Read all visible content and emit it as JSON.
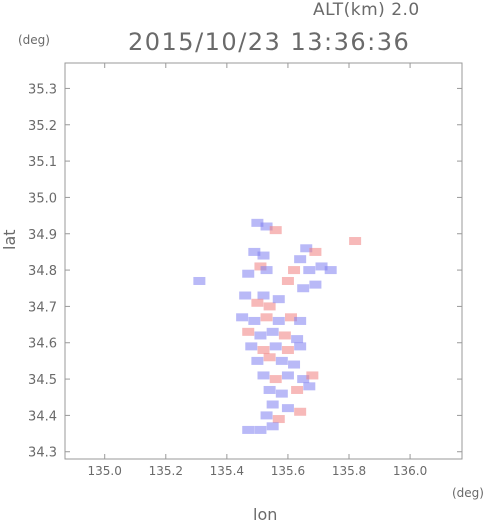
{
  "header": {
    "altitude_label": "ALT(km) 2.0",
    "timestamp": "2015/10/23 13:36:36",
    "y_unit": "(deg)",
    "x_unit": "(deg)"
  },
  "chart_data": {
    "type": "heatmap",
    "title": "2015/10/23 13:36:36",
    "xlabel": "lon",
    "ylabel": "lat",
    "xlim": [
      134.87,
      136.17
    ],
    "ylim": [
      34.28,
      35.37
    ],
    "x_ticks": [
      135.0,
      135.2,
      135.4,
      135.6,
      135.8,
      136.0
    ],
    "x_tick_labels": [
      "135.0",
      "135.2",
      "135.4",
      "135.6",
      "135.8",
      "136.0"
    ],
    "y_ticks": [
      34.3,
      34.4,
      34.5,
      34.6,
      34.7,
      34.8,
      34.9,
      35.0,
      35.1,
      35.2,
      35.3
    ],
    "y_tick_labels": [
      "34.3",
      "34.4",
      "34.5",
      "34.6",
      "34.7",
      "34.8",
      "34.9",
      "35.0",
      "35.1",
      "35.2",
      "35.3"
    ],
    "grid": false,
    "colors": {
      "positive": "#f08080",
      "negative": "#8080f0"
    },
    "cells": [
      {
        "lon": 135.5,
        "lat": 34.93,
        "sign": -1
      },
      {
        "lon": 135.53,
        "lat": 34.92,
        "sign": -1
      },
      {
        "lon": 135.56,
        "lat": 34.91,
        "sign": 1
      },
      {
        "lon": 135.49,
        "lat": 34.85,
        "sign": -1
      },
      {
        "lon": 135.52,
        "lat": 34.84,
        "sign": -1
      },
      {
        "lon": 135.51,
        "lat": 34.81,
        "sign": 1
      },
      {
        "lon": 135.53,
        "lat": 34.8,
        "sign": -1
      },
      {
        "lon": 135.47,
        "lat": 34.79,
        "sign": -1
      },
      {
        "lon": 135.66,
        "lat": 34.86,
        "sign": -1
      },
      {
        "lon": 135.69,
        "lat": 34.85,
        "sign": 1
      },
      {
        "lon": 135.64,
        "lat": 34.83,
        "sign": -1
      },
      {
        "lon": 135.62,
        "lat": 34.8,
        "sign": 1
      },
      {
        "lon": 135.67,
        "lat": 34.8,
        "sign": -1
      },
      {
        "lon": 135.71,
        "lat": 34.81,
        "sign": -1
      },
      {
        "lon": 135.74,
        "lat": 34.8,
        "sign": -1
      },
      {
        "lon": 135.6,
        "lat": 34.77,
        "sign": 1
      },
      {
        "lon": 135.65,
        "lat": 34.75,
        "sign": -1
      },
      {
        "lon": 135.69,
        "lat": 34.76,
        "sign": -1
      },
      {
        "lon": 135.82,
        "lat": 34.88,
        "sign": 1
      },
      {
        "lon": 135.31,
        "lat": 34.77,
        "sign": -1
      },
      {
        "lon": 135.52,
        "lat": 34.73,
        "sign": -1
      },
      {
        "lon": 135.46,
        "lat": 34.73,
        "sign": -1
      },
      {
        "lon": 135.5,
        "lat": 34.71,
        "sign": 1
      },
      {
        "lon": 135.54,
        "lat": 34.7,
        "sign": 1
      },
      {
        "lon": 135.57,
        "lat": 34.72,
        "sign": -1
      },
      {
        "lon": 135.45,
        "lat": 34.67,
        "sign": -1
      },
      {
        "lon": 135.49,
        "lat": 34.66,
        "sign": -1
      },
      {
        "lon": 135.53,
        "lat": 34.67,
        "sign": 1
      },
      {
        "lon": 135.57,
        "lat": 34.66,
        "sign": -1
      },
      {
        "lon": 135.61,
        "lat": 34.67,
        "sign": 1
      },
      {
        "lon": 135.64,
        "lat": 34.66,
        "sign": -1
      },
      {
        "lon": 135.47,
        "lat": 34.63,
        "sign": 1
      },
      {
        "lon": 135.51,
        "lat": 34.62,
        "sign": -1
      },
      {
        "lon": 135.55,
        "lat": 34.63,
        "sign": -1
      },
      {
        "lon": 135.59,
        "lat": 34.62,
        "sign": 1
      },
      {
        "lon": 135.63,
        "lat": 34.61,
        "sign": -1
      },
      {
        "lon": 135.48,
        "lat": 34.59,
        "sign": -1
      },
      {
        "lon": 135.52,
        "lat": 34.58,
        "sign": 1
      },
      {
        "lon": 135.56,
        "lat": 34.59,
        "sign": -1
      },
      {
        "lon": 135.6,
        "lat": 34.58,
        "sign": 1
      },
      {
        "lon": 135.64,
        "lat": 34.59,
        "sign": -1
      },
      {
        "lon": 135.5,
        "lat": 34.55,
        "sign": -1
      },
      {
        "lon": 135.54,
        "lat": 34.56,
        "sign": 1
      },
      {
        "lon": 135.58,
        "lat": 34.55,
        "sign": -1
      },
      {
        "lon": 135.62,
        "lat": 34.54,
        "sign": -1
      },
      {
        "lon": 135.52,
        "lat": 34.51,
        "sign": -1
      },
      {
        "lon": 135.56,
        "lat": 34.5,
        "sign": 1
      },
      {
        "lon": 135.6,
        "lat": 34.51,
        "sign": -1
      },
      {
        "lon": 135.65,
        "lat": 34.5,
        "sign": -1
      },
      {
        "lon": 135.68,
        "lat": 34.51,
        "sign": 1
      },
      {
        "lon": 135.54,
        "lat": 34.47,
        "sign": -1
      },
      {
        "lon": 135.58,
        "lat": 34.46,
        "sign": -1
      },
      {
        "lon": 135.63,
        "lat": 34.47,
        "sign": 1
      },
      {
        "lon": 135.67,
        "lat": 34.48,
        "sign": -1
      },
      {
        "lon": 135.55,
        "lat": 34.43,
        "sign": -1
      },
      {
        "lon": 135.6,
        "lat": 34.42,
        "sign": -1
      },
      {
        "lon": 135.64,
        "lat": 34.41,
        "sign": 1
      },
      {
        "lon": 135.53,
        "lat": 34.4,
        "sign": -1
      },
      {
        "lon": 135.57,
        "lat": 34.39,
        "sign": 1
      },
      {
        "lon": 135.47,
        "lat": 34.36,
        "sign": -1
      },
      {
        "lon": 135.51,
        "lat": 34.36,
        "sign": -1
      },
      {
        "lon": 135.55,
        "lat": 34.37,
        "sign": -1
      }
    ]
  }
}
